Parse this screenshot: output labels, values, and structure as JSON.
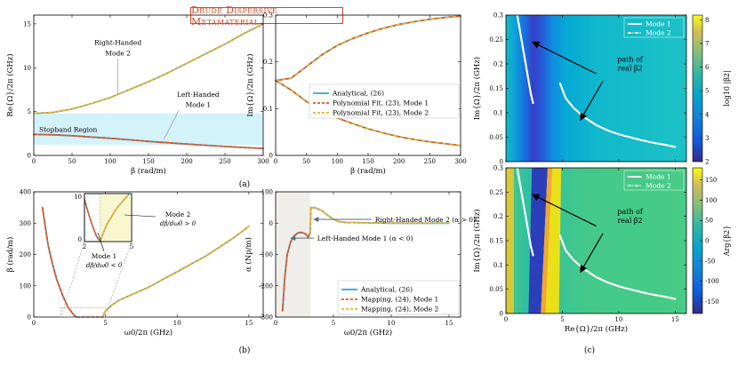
{
  "figure_title": "Drude Dispersive Metamaterial",
  "colors": {
    "analytical": "#2aa7d8",
    "mode1": "#e8541c",
    "mode2": "#f2b12a",
    "stopband": "#d4f2fa",
    "inset_bg": "#f8f7cf",
    "lhm_region": "#efeeea",
    "title": "#d24a2a"
  },
  "subfigure_labels": {
    "a": "(a)",
    "b": "(b)",
    "c": "(c)"
  },
  "chart_data": [
    {
      "id": "a-left",
      "type": "line",
      "xlabel": "β (rad/m)",
      "ylabel": "Re{Ω}/2π (GHz)",
      "xlim": [
        0,
        300
      ],
      "ylim": [
        0,
        16
      ],
      "xticks": [
        "0",
        "50",
        "100",
        "150",
        "200",
        "250",
        "300"
      ],
      "yticks": [
        "0",
        "5",
        "10",
        "15"
      ],
      "stopband": [
        1.2,
        4.8
      ],
      "annotations": [
        "Right-Handed",
        "Mode 2",
        "Left-Handed",
        "Mode 1",
        "Stopband Region"
      ],
      "series": [
        {
          "role": "mode2",
          "x": [
            0,
            25,
            50,
            75,
            100,
            125,
            150,
            175,
            200,
            225,
            250,
            275,
            300
          ],
          "y": [
            4.8,
            4.9,
            5.3,
            5.9,
            6.6,
            7.5,
            8.4,
            9.4,
            10.5,
            11.6,
            12.7,
            13.9,
            15.0
          ]
        },
        {
          "role": "mode1",
          "x": [
            0,
            25,
            50,
            75,
            100,
            125,
            150,
            175,
            200,
            225,
            250,
            275,
            300
          ],
          "y": [
            2.4,
            2.35,
            2.25,
            2.1,
            1.95,
            1.78,
            1.6,
            1.45,
            1.3,
            1.15,
            1.02,
            0.9,
            0.8
          ]
        }
      ]
    },
    {
      "id": "a-right",
      "type": "line",
      "xlabel": "β (rad/m)",
      "ylabel": "Im{Ω}/2π (GHz)",
      "xlim": [
        0,
        300
      ],
      "ylim": [
        0,
        0.3
      ],
      "xticks": [
        "0",
        "50",
        "100",
        "150",
        "200",
        "250",
        "300"
      ],
      "yticks": [
        "0",
        "0.1",
        "0.2",
        "0.3"
      ],
      "legend": [
        "Analytical, (26)",
        "Polynomial Fit, (23), Mode 1",
        "Polynomial Fit, (23), Mode 2"
      ],
      "series": [
        {
          "role": "upper",
          "x": [
            0,
            25,
            50,
            75,
            100,
            125,
            150,
            175,
            200,
            225,
            250,
            275,
            300
          ],
          "y": [
            0.16,
            0.165,
            0.19,
            0.215,
            0.235,
            0.25,
            0.262,
            0.272,
            0.28,
            0.286,
            0.291,
            0.295,
            0.298
          ]
        },
        {
          "role": "lower",
          "x": [
            0,
            25,
            50,
            75,
            100,
            125,
            150,
            175,
            200,
            225,
            250,
            275,
            300
          ],
          "y": [
            0.16,
            0.14,
            0.115,
            0.095,
            0.08,
            0.068,
            0.057,
            0.048,
            0.04,
            0.034,
            0.029,
            0.025,
            0.021
          ]
        }
      ]
    },
    {
      "id": "b-left",
      "type": "line",
      "xlabel": "ω0/2π (GHz)",
      "ylabel": "β (rad/m)",
      "xlim": [
        0,
        16
      ],
      "ylim": [
        0,
        400
      ],
      "xticks": [
        "0",
        "5",
        "10",
        "15"
      ],
      "yticks": [
        "0",
        "100",
        "200",
        "300",
        "400"
      ],
      "annotations": [
        "Mode 1",
        "dβ/dω0 < 0",
        "Mode 2",
        "dβ/dω0 > 0"
      ],
      "series": [
        {
          "role": "mode1",
          "x": [
            0.6,
            0.8,
            1.0,
            1.3,
            1.6,
            2.0,
            2.4,
            2.8,
            3.0
          ],
          "y": [
            350,
            290,
            230,
            170,
            120,
            70,
            30,
            6,
            0
          ]
        },
        {
          "role": "mode2",
          "x": [
            4.8,
            5.0,
            5.5,
            6,
            7,
            8,
            9,
            10,
            11,
            12,
            13,
            14,
            15
          ],
          "y": [
            0,
            20,
            40,
            55,
            75,
            95,
            120,
            145,
            170,
            195,
            225,
            255,
            290
          ]
        }
      ],
      "inset": {
        "xlim": [
          2,
          5
        ],
        "ylim": [
          0,
          10
        ],
        "xticks": [
          "2",
          "5"
        ],
        "yticks": [
          "0",
          "10"
        ],
        "mode1": {
          "x": [
            2.0,
            2.2,
            2.4,
            2.6,
            2.8,
            3.0
          ],
          "y": [
            8.8,
            6.5,
            4.3,
            2.5,
            0.9,
            0
          ]
        },
        "mode2": {
          "x": [
            3.0,
            3.2,
            3.4,
            3.6,
            3.8,
            4.0,
            4.3,
            4.6,
            4.8
          ],
          "y": [
            0,
            1.8,
            3.4,
            4.5,
            5.6,
            6.7,
            7.9,
            9.0,
            9.8
          ]
        }
      }
    },
    {
      "id": "b-right",
      "type": "line",
      "xlabel": "ω0/2π (GHz)",
      "ylabel": "α (Np/m)",
      "xlim": [
        0,
        16
      ],
      "ylim": [
        -300,
        100
      ],
      "xticks": [
        "0",
        "5",
        "10",
        "15"
      ],
      "yticks": [
        "-300",
        "-200",
        "-100",
        "0",
        "100"
      ],
      "lh_region": [
        0,
        3
      ],
      "annotations": [
        "Right-Handed Mode 2 (α > 0)",
        "Left-Handed Mode 1 (α < 0)"
      ],
      "legend": [
        "Analytical, (26)",
        "Mapping, (24), Mode 1",
        "Mapping, (24), Mode 2"
      ],
      "series": [
        {
          "role": "mode1",
          "x": [
            0.6,
            0.8,
            1.0,
            1.3,
            1.6,
            2.0,
            2.3,
            2.6,
            2.8,
            3.0
          ],
          "y": [
            -280,
            -170,
            -100,
            -60,
            -40,
            -30,
            -30,
            -35,
            -45,
            -30
          ]
        },
        {
          "role": "mode2",
          "x": [
            3.0,
            3.05,
            3.5,
            4.0,
            4.5,
            5.0,
            5.5,
            6,
            8,
            10,
            12,
            15
          ],
          "y": [
            -30,
            50,
            48,
            40,
            25,
            12,
            5,
            2,
            1,
            0,
            0,
            0
          ]
        }
      ]
    },
    {
      "id": "c-top",
      "type": "heatmap",
      "xlabel": "",
      "ylabel": "Im{Ω}/2π (GHz)",
      "xlim": [
        0,
        16
      ],
      "ylim": [
        0,
        0.3
      ],
      "xticks": [
        "0",
        "5",
        "10",
        "15"
      ],
      "yticks": [
        "0",
        "0.05",
        "0.1",
        "0.15",
        "0.2",
        "0.25",
        "0.3"
      ],
      "colorbar": {
        "label": "log10 |β2|",
        "ticks": [
          "2",
          "3",
          "4",
          "5",
          "6",
          "7",
          "8"
        ],
        "range": [
          2,
          8.2
        ]
      },
      "legend": [
        "Mode 1",
        "Mode 2"
      ],
      "annotation": [
        "path of",
        "real β2"
      ],
      "mode1": {
        "x": [
          1.0,
          1.3,
          1.6,
          1.9,
          2.2,
          2.4
        ],
        "y": [
          0.3,
          0.26,
          0.22,
          0.18,
          0.14,
          0.12
        ]
      },
      "mode2": {
        "x": [
          4.8,
          5.3,
          6,
          7,
          8,
          9,
          10,
          11,
          12,
          13,
          14,
          15
        ],
        "y": [
          0.16,
          0.13,
          0.11,
          0.09,
          0.075,
          0.064,
          0.056,
          0.05,
          0.044,
          0.039,
          0.035,
          0.03
        ]
      }
    },
    {
      "id": "c-bottom",
      "type": "heatmap",
      "xlabel": "Re{Ω}/2π (GHz)",
      "ylabel": "Im{Ω}/2π (GHz)",
      "xlim": [
        0,
        16
      ],
      "ylim": [
        0,
        0.3
      ],
      "xticks": [
        "0",
        "5",
        "10",
        "15"
      ],
      "yticks": [
        "0",
        "0.05",
        "0.1",
        "0.15",
        "0.2",
        "0.25",
        "0.3"
      ],
      "colorbar": {
        "label": "Arg{β2}",
        "ticks": [
          "150",
          "100",
          "50",
          "0",
          "-50",
          "-100",
          "-150"
        ],
        "range": [
          -180,
          180
        ]
      },
      "legend": [
        "Mode 1",
        "Mode 2"
      ],
      "annotation": [
        "path of",
        "real β2"
      ],
      "mode1": {
        "x": [
          1.0,
          1.3,
          1.6,
          1.9,
          2.2,
          2.4
        ],
        "y": [
          0.3,
          0.26,
          0.22,
          0.18,
          0.14,
          0.12
        ]
      },
      "mode2": {
        "x": [
          4.8,
          5.3,
          6,
          7,
          8,
          9,
          10,
          11,
          12,
          13,
          14,
          15
        ],
        "y": [
          0.16,
          0.13,
          0.11,
          0.09,
          0.075,
          0.064,
          0.056,
          0.05,
          0.044,
          0.039,
          0.035,
          0.03
        ]
      }
    }
  ]
}
